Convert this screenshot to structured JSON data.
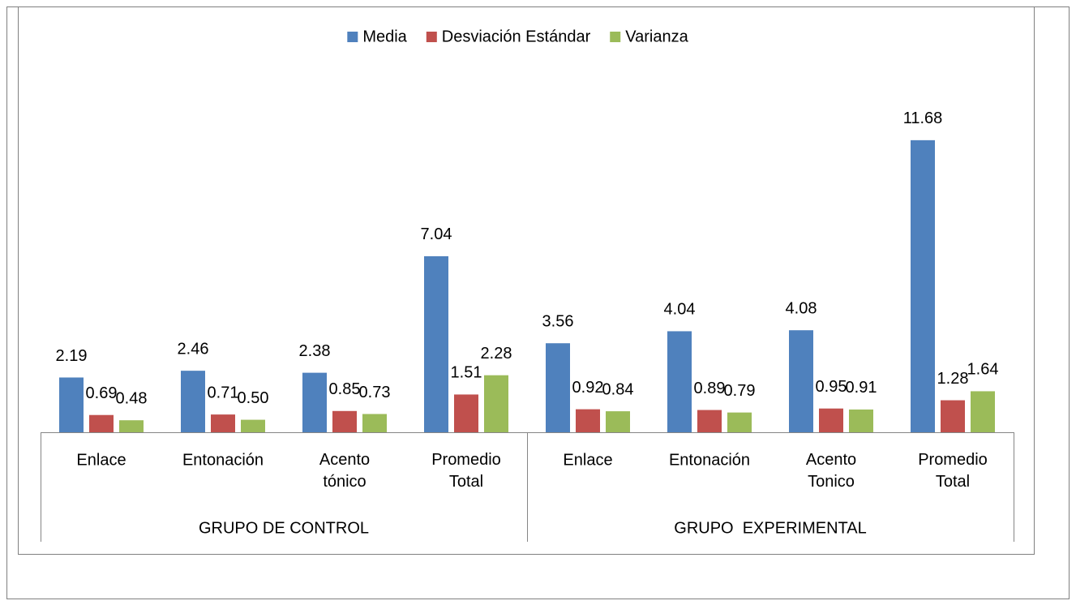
{
  "chart_data": {
    "type": "bar",
    "categories": [
      "Enlace",
      "Entonación",
      "Acento tónico",
      "Promedio Total",
      "Enlace",
      "Entonación",
      "Acento Tonico",
      "Promedio Total"
    ],
    "groups": [
      {
        "label": "GRUPO DE CONTROL",
        "count": 4
      },
      {
        "label": "GRUPO  EXPERIMENTAL",
        "count": 4
      }
    ],
    "series": [
      {
        "name": "Media",
        "color": "#4f81bd",
        "values": [
          2.19,
          2.46,
          2.38,
          7.04,
          3.56,
          4.04,
          4.08,
          11.68
        ],
        "value_labels": [
          "2.19",
          "2.46",
          "2.38",
          "7.04",
          "3.56",
          "4.04",
          "4.08",
          "11.68"
        ]
      },
      {
        "name": "Desviación Estándar",
        "color": "#c0504d",
        "values": [
          0.69,
          0.71,
          0.85,
          1.51,
          0.92,
          0.89,
          0.95,
          1.28
        ],
        "value_labels": [
          "0.69",
          "0.71",
          "0.85",
          "1.51",
          "0.92",
          "0.89",
          "0.95",
          "1.28"
        ]
      },
      {
        "name": "Varianza",
        "color": "#9bbb59",
        "values": [
          0.48,
          0.5,
          0.73,
          2.28,
          0.84,
          0.79,
          0.91,
          1.64
        ],
        "value_labels": [
          "0.48",
          "0.50",
          "0.73",
          "2.28",
          "0.84",
          "0.79",
          "0.91",
          "1.64"
        ]
      }
    ],
    "ylim": [
      0,
      12
    ],
    "legend": "top"
  }
}
